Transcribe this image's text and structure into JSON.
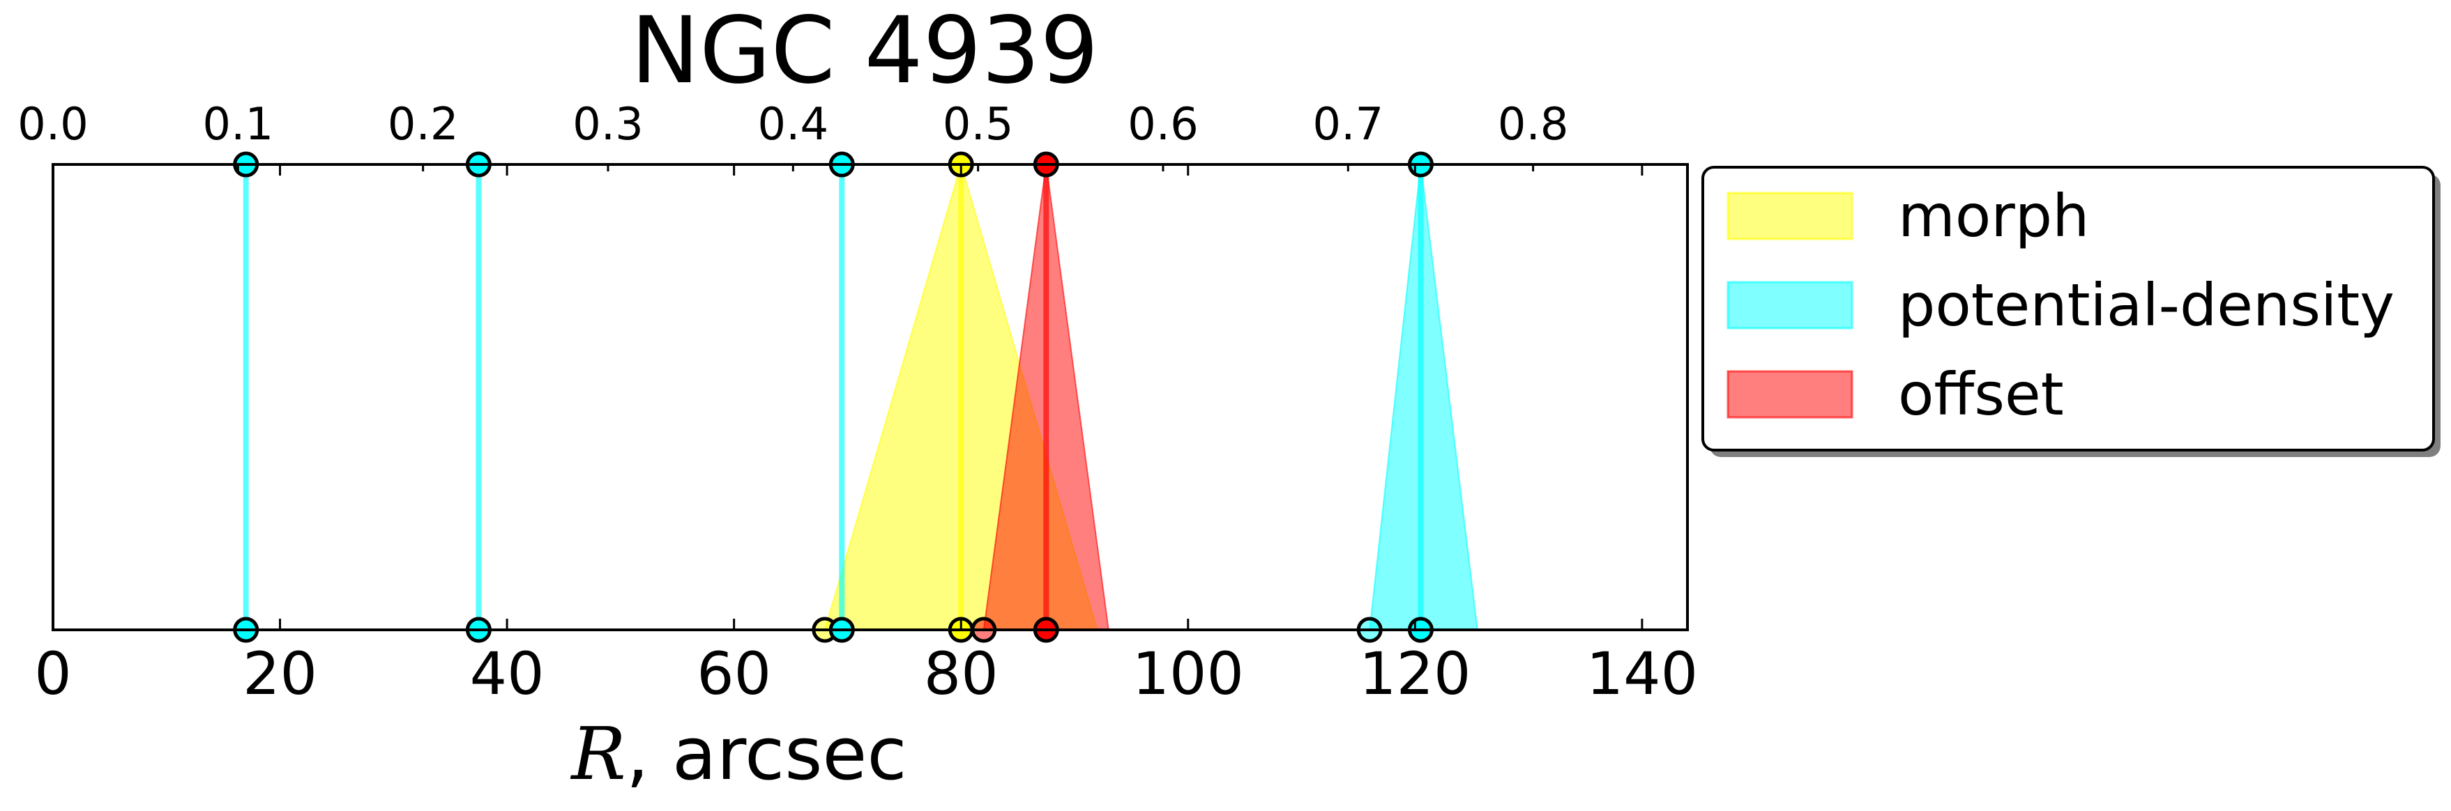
{
  "chart_data": {
    "type": "area",
    "title": "NGC 4939",
    "xlabel": {
      "var": "R",
      "rest": ", arcsec"
    },
    "xlim": [
      0,
      144
    ],
    "x_ticks": [
      0,
      20,
      40,
      60,
      80,
      100,
      120,
      140
    ],
    "x_tick_labels": [
      "0",
      "20",
      "40",
      "60",
      "80",
      "100",
      "120",
      "140"
    ],
    "top_axis": {
      "ticks": [
        0.0,
        0.1,
        0.2,
        0.3,
        0.4,
        0.5,
        0.6,
        0.7,
        0.8
      ],
      "tick_labels": [
        "0.0",
        "0.1",
        "0.2",
        "0.3",
        "0.4",
        "0.5",
        "0.6",
        "0.7",
        "0.8"
      ],
      "ticks_r": [
        0.0,
        16.3,
        32.6,
        48.9,
        65.2,
        81.5,
        97.8,
        114.1,
        130.4
      ]
    },
    "legend_position": "right",
    "grid": false,
    "series": [
      {
        "name": "morph",
        "color": "#ffff00",
        "marker_fill": "#ffff00",
        "edge_color": "#ffff00",
        "markers": [
          {
            "r": 80,
            "lo": 68,
            "hi": 92
          }
        ]
      },
      {
        "name": "potential-density",
        "color": "#00ffff",
        "marker_fill": "#00ffff",
        "edge_color": "#00ffff",
        "markers": [
          {
            "r": 17,
            "lo": 17,
            "hi": 17
          },
          {
            "r": 37.5,
            "lo": 37.5,
            "hi": 37.5
          },
          {
            "r": 69.5,
            "lo": 69.5,
            "hi": 69.5
          },
          {
            "r": 120.5,
            "lo": 116,
            "hi": 125.5
          }
        ]
      },
      {
        "name": "offset",
        "color": "#ff0000",
        "marker_fill": "#ff0000",
        "edge_color": "#ff0000",
        "markers": [
          {
            "r": 87.5,
            "lo": 82,
            "hi": 93
          }
        ]
      }
    ]
  }
}
